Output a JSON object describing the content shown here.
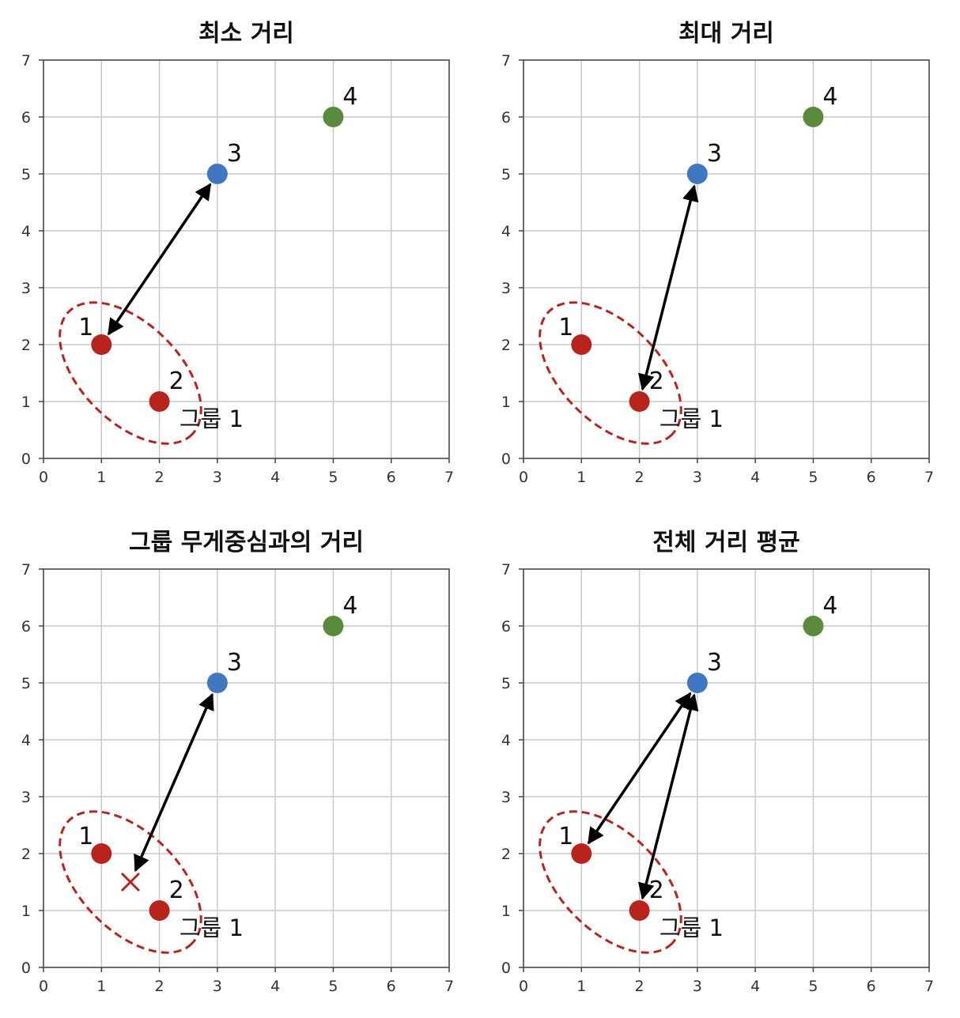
{
  "chart_data": [
    {
      "type": "scatter",
      "title": "최소 거리",
      "xlim": [
        0,
        7
      ],
      "ylim": [
        0,
        7
      ],
      "xticks": [
        "0",
        "1",
        "2",
        "3",
        "4",
        "5",
        "6",
        "7"
      ],
      "yticks": [
        "0",
        "1",
        "2",
        "3",
        "4",
        "5",
        "6",
        "7"
      ],
      "grid": true,
      "points": [
        {
          "label": "1",
          "x": 1,
          "y": 2,
          "color": "#b8241c"
        },
        {
          "label": "2",
          "x": 2,
          "y": 1,
          "color": "#b8241c"
        },
        {
          "label": "3",
          "x": 3,
          "y": 5,
          "color": "#3f78c0"
        },
        {
          "label": "4",
          "x": 5,
          "y": 6,
          "color": "#5a8a3c"
        }
      ],
      "group": {
        "label": "그룹 1",
        "members": [
          "1",
          "2"
        ],
        "color": "#b8241c"
      },
      "arrows": [
        {
          "from": [
            1,
            2
          ],
          "to": [
            3,
            5
          ]
        }
      ],
      "markers": []
    },
    {
      "type": "scatter",
      "title": "최대 거리",
      "xlim": [
        0,
        7
      ],
      "ylim": [
        0,
        7
      ],
      "xticks": [
        "0",
        "1",
        "2",
        "3",
        "4",
        "5",
        "6",
        "7"
      ],
      "yticks": [
        "0",
        "1",
        "2",
        "3",
        "4",
        "5",
        "6",
        "7"
      ],
      "grid": true,
      "points": [
        {
          "label": "1",
          "x": 1,
          "y": 2,
          "color": "#b8241c"
        },
        {
          "label": "2",
          "x": 2,
          "y": 1,
          "color": "#b8241c"
        },
        {
          "label": "3",
          "x": 3,
          "y": 5,
          "color": "#3f78c0"
        },
        {
          "label": "4",
          "x": 5,
          "y": 6,
          "color": "#5a8a3c"
        }
      ],
      "group": {
        "label": "그룹 1",
        "members": [
          "1",
          "2"
        ],
        "color": "#b8241c"
      },
      "arrows": [
        {
          "from": [
            2,
            1
          ],
          "to": [
            3,
            5
          ]
        }
      ],
      "markers": []
    },
    {
      "type": "scatter",
      "title": "그룹 무게중심과의 거리",
      "xlim": [
        0,
        7
      ],
      "ylim": [
        0,
        7
      ],
      "xticks": [
        "0",
        "1",
        "2",
        "3",
        "4",
        "5",
        "6",
        "7"
      ],
      "yticks": [
        "0",
        "1",
        "2",
        "3",
        "4",
        "5",
        "6",
        "7"
      ],
      "grid": true,
      "points": [
        {
          "label": "1",
          "x": 1,
          "y": 2,
          "color": "#b8241c"
        },
        {
          "label": "2",
          "x": 2,
          "y": 1,
          "color": "#b8241c"
        },
        {
          "label": "3",
          "x": 3,
          "y": 5,
          "color": "#3f78c0"
        },
        {
          "label": "4",
          "x": 5,
          "y": 6,
          "color": "#5a8a3c"
        }
      ],
      "group": {
        "label": "그룹 1",
        "members": [
          "1",
          "2"
        ],
        "color": "#b8241c"
      },
      "arrows": [
        {
          "from": [
            1.5,
            1.5
          ],
          "to": [
            3,
            5
          ]
        }
      ],
      "markers": [
        {
          "shape": "x",
          "x": 1.5,
          "y": 1.5,
          "color": "#b8241c"
        }
      ]
    },
    {
      "type": "scatter",
      "title": "전체 거리 평균",
      "xlim": [
        0,
        7
      ],
      "ylim": [
        0,
        7
      ],
      "xticks": [
        "0",
        "1",
        "2",
        "3",
        "4",
        "5",
        "6",
        "7"
      ],
      "yticks": [
        "0",
        "1",
        "2",
        "3",
        "4",
        "5",
        "6",
        "7"
      ],
      "grid": true,
      "points": [
        {
          "label": "1",
          "x": 1,
          "y": 2,
          "color": "#b8241c"
        },
        {
          "label": "2",
          "x": 2,
          "y": 1,
          "color": "#b8241c"
        },
        {
          "label": "3",
          "x": 3,
          "y": 5,
          "color": "#3f78c0"
        },
        {
          "label": "4",
          "x": 5,
          "y": 6,
          "color": "#5a8a3c"
        }
      ],
      "group": {
        "label": "그룹 1",
        "members": [
          "1",
          "2"
        ],
        "color": "#b8241c"
      },
      "arrows": [
        {
          "from": [
            1,
            2
          ],
          "to": [
            3,
            5
          ]
        },
        {
          "from": [
            2,
            1
          ],
          "to": [
            3,
            5
          ]
        }
      ],
      "markers": []
    }
  ]
}
